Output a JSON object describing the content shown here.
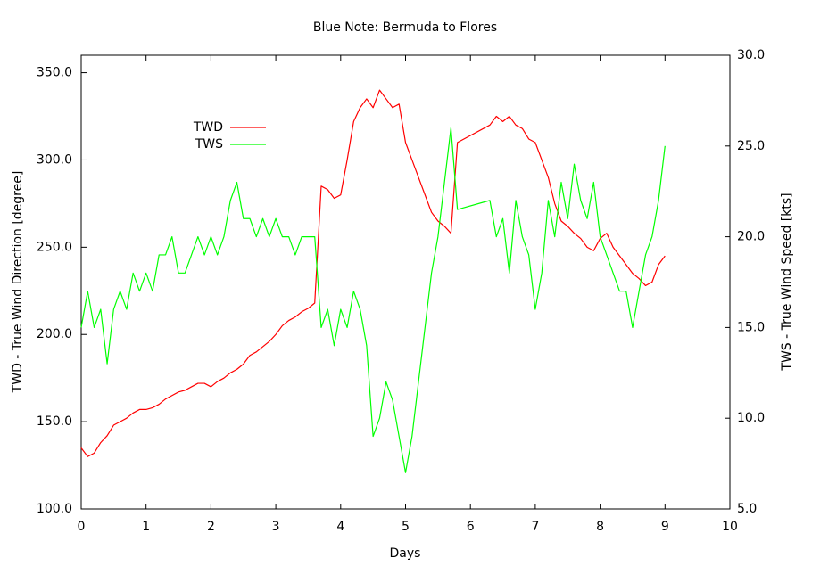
{
  "chart_data": {
    "type": "line",
    "title": "Blue Note: Bermuda to Flores",
    "xlabel": "Days",
    "ylabel": "TWD - True Wind Direction [degree]",
    "y2label": "TWS - True Wind Speed [kts]",
    "x": [
      0,
      0.1,
      0.2,
      0.3,
      0.4,
      0.5,
      0.6,
      0.7,
      0.8,
      0.9,
      1.0,
      1.1,
      1.2,
      1.3,
      1.4,
      1.5,
      1.6,
      1.7,
      1.8,
      1.9,
      2.0,
      2.1,
      2.2,
      2.3,
      2.4,
      2.5,
      2.6,
      2.7,
      2.8,
      2.9,
      3.0,
      3.1,
      3.2,
      3.3,
      3.4,
      3.5,
      3.6,
      3.7,
      3.8,
      3.9,
      4.0,
      4.1,
      4.2,
      4.3,
      4.4,
      4.5,
      4.6,
      4.7,
      4.8,
      4.9,
      5.0,
      5.1,
      5.2,
      5.3,
      5.4,
      5.5,
      5.6,
      5.7,
      5.8,
      6.3,
      6.4,
      6.5,
      6.6,
      6.7,
      6.8,
      6.9,
      7.0,
      7.1,
      7.2,
      7.3,
      7.4,
      7.5,
      7.6,
      7.7,
      7.8,
      7.9,
      8.0,
      8.1,
      8.2,
      8.3,
      8.4,
      8.5,
      8.6,
      8.7,
      8.8,
      8.9,
      9.0
    ],
    "series": [
      {
        "name": "TWD",
        "color": "#ff0000",
        "axis": "y",
        "values": [
          135,
          130,
          132,
          138,
          142,
          148,
          150,
          152,
          155,
          157,
          157,
          158,
          160,
          163,
          165,
          167,
          168,
          170,
          172,
          172,
          170,
          173,
          175,
          178,
          180,
          183,
          188,
          190,
          193,
          196,
          200,
          205,
          208,
          210,
          213,
          215,
          218,
          285,
          283,
          278,
          280,
          300,
          322,
          330,
          335,
          330,
          340,
          335,
          330,
          332,
          310,
          300,
          290,
          280,
          270,
          265,
          262,
          258,
          310,
          320,
          325,
          322,
          325,
          320,
          318,
          312,
          310,
          300,
          290,
          275,
          265,
          262,
          258,
          255,
          250,
          248,
          255,
          258,
          250,
          245,
          240,
          235,
          232,
          228,
          230,
          240,
          245
        ]
      },
      {
        "name": "TWS",
        "color": "#00ff00",
        "axis": "y2",
        "values": [
          15,
          17,
          15,
          16,
          13,
          16,
          17,
          16,
          18,
          17,
          18,
          17,
          19,
          19,
          20,
          18,
          18,
          19,
          20,
          19,
          20,
          19,
          20,
          22,
          23,
          21,
          21,
          20,
          21,
          20,
          21,
          20,
          20,
          19,
          20,
          20,
          20,
          15,
          16,
          14,
          16,
          15,
          17,
          16,
          14,
          9,
          10,
          12,
          11,
          9,
          7,
          9,
          12,
          15,
          18,
          20,
          23,
          26,
          21.5,
          22,
          20,
          21,
          18,
          22,
          20,
          19,
          16,
          18,
          22,
          20,
          23,
          21,
          24,
          22,
          21,
          23,
          20,
          19,
          18,
          17,
          17,
          15,
          17,
          19,
          20,
          22,
          25
        ]
      }
    ],
    "xlim": [
      0,
      10
    ],
    "xticks": [
      0,
      1,
      2,
      3,
      4,
      5,
      6,
      7,
      8,
      9,
      10
    ],
    "ylim": [
      100,
      360
    ],
    "yticks": [
      {
        "value": 100,
        "label": "100.0"
      },
      {
        "value": 150,
        "label": "150.0"
      },
      {
        "value": 200,
        "label": "200.0"
      },
      {
        "value": 250,
        "label": "250.0"
      },
      {
        "value": 300,
        "label": "300.0"
      },
      {
        "value": 350,
        "label": "350.0"
      }
    ],
    "y2lim": [
      5,
      30
    ],
    "y2ticks": [
      {
        "value": 5,
        "label": "5.0"
      },
      {
        "value": 10,
        "label": "10.0"
      },
      {
        "value": 15,
        "label": "15.0"
      },
      {
        "value": 20,
        "label": "20.0"
      },
      {
        "value": 25,
        "label": "25.0"
      },
      {
        "value": 30,
        "label": "30.0"
      }
    ],
    "legend": "top-left"
  }
}
